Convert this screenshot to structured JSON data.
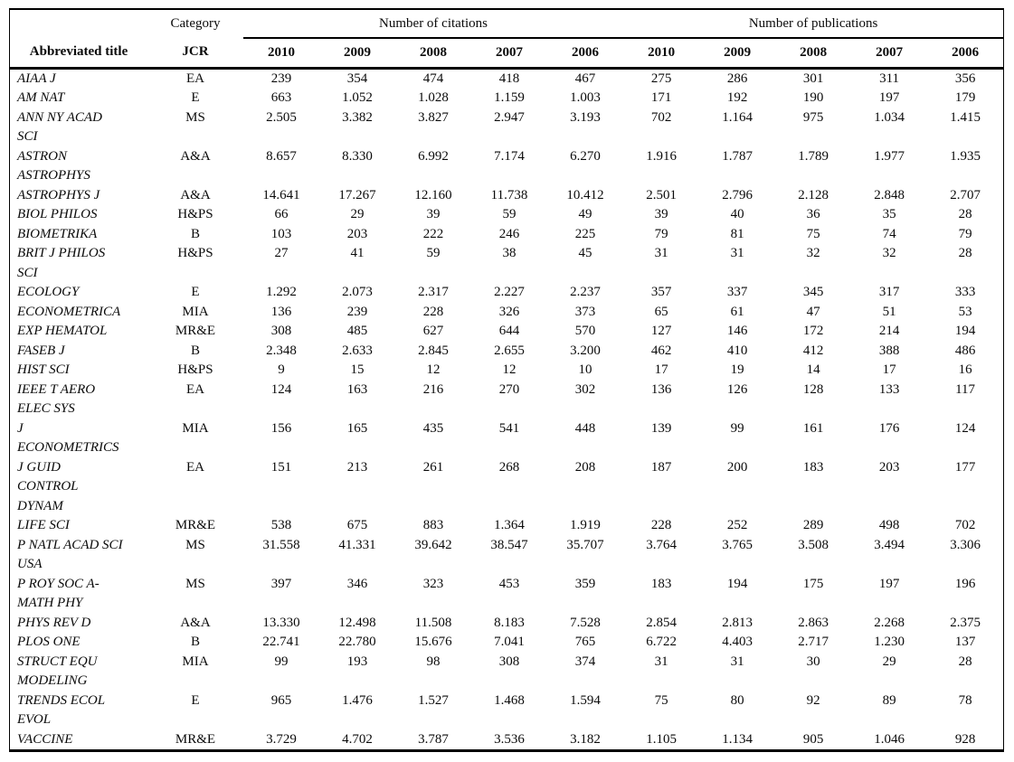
{
  "table": {
    "header": {
      "title_label": "Abbreviated title",
      "category_label": "Category",
      "jcr_label": "JCR",
      "citations_group_label": "Number of citations",
      "publications_group_label": "Number of publications",
      "years": [
        "2010",
        "2009",
        "2008",
        "2007",
        "2006"
      ]
    },
    "rows": [
      {
        "title": "AIAA J",
        "jcr": "EA",
        "citations": [
          "239",
          "354",
          "474",
          "418",
          "467"
        ],
        "publications": [
          "275",
          "286",
          "301",
          "311",
          "356"
        ]
      },
      {
        "title": "AM NAT",
        "jcr": "E",
        "citations": [
          "663",
          "1.052",
          "1.028",
          "1.159",
          "1.003"
        ],
        "publications": [
          "171",
          "192",
          "190",
          "197",
          "179"
        ]
      },
      {
        "title": "ANN NY ACAD\nSCI",
        "jcr": "MS",
        "citations": [
          "2.505",
          "3.382",
          "3.827",
          "2.947",
          "3.193"
        ],
        "publications": [
          "702",
          "1.164",
          "975",
          "1.034",
          "1.415"
        ]
      },
      {
        "title": "ASTRON\nASTROPHYS",
        "jcr": "A&A",
        "citations": [
          "8.657",
          "8.330",
          "6.992",
          "7.174",
          "6.270"
        ],
        "publications": [
          "1.916",
          "1.787",
          "1.789",
          "1.977",
          "1.935"
        ]
      },
      {
        "title": "ASTROPHYS J",
        "jcr": "A&A",
        "citations": [
          "14.641",
          "17.267",
          "12.160",
          "11.738",
          "10.412"
        ],
        "publications": [
          "2.501",
          "2.796",
          "2.128",
          "2.848",
          "2.707"
        ]
      },
      {
        "title": "BIOL PHILOS",
        "jcr": "H&PS",
        "citations": [
          "66",
          "29",
          "39",
          "59",
          "49"
        ],
        "publications": [
          "39",
          "40",
          "36",
          "35",
          "28"
        ]
      },
      {
        "title": "BIOMETRIKA",
        "jcr": "B",
        "citations": [
          "103",
          "203",
          "222",
          "246",
          "225"
        ],
        "publications": [
          "79",
          "81",
          "75",
          "74",
          "79"
        ]
      },
      {
        "title": "BRIT J PHILOS\nSCI",
        "jcr": "H&PS",
        "citations": [
          "27",
          "41",
          "59",
          "38",
          "45"
        ],
        "publications": [
          "31",
          "31",
          "32",
          "32",
          "28"
        ]
      },
      {
        "title": "ECOLOGY",
        "jcr": "E",
        "citations": [
          "1.292",
          "2.073",
          "2.317",
          "2.227",
          "2.237"
        ],
        "publications": [
          "357",
          "337",
          "345",
          "317",
          "333"
        ]
      },
      {
        "title": "ECONOMETRICA",
        "jcr": "MIA",
        "citations": [
          "136",
          "239",
          "228",
          "326",
          "373"
        ],
        "publications": [
          "65",
          "61",
          "47",
          "51",
          "53"
        ]
      },
      {
        "title": "EXP HEMATOL",
        "jcr": "MR&E",
        "citations": [
          "308",
          "485",
          "627",
          "644",
          "570"
        ],
        "publications": [
          "127",
          "146",
          "172",
          "214",
          "194"
        ]
      },
      {
        "title": "FASEB J",
        "jcr": "B",
        "citations": [
          "2.348",
          "2.633",
          "2.845",
          "2.655",
          "3.200"
        ],
        "publications": [
          "462",
          "410",
          "412",
          "388",
          "486"
        ]
      },
      {
        "title": "HIST SCI",
        "jcr": "H&PS",
        "citations": [
          "9",
          "15",
          "12",
          "12",
          "10"
        ],
        "publications": [
          "17",
          "19",
          "14",
          "17",
          "16"
        ]
      },
      {
        "title": "IEEE T AERO\nELEC SYS",
        "jcr": "EA",
        "citations": [
          "124",
          "163",
          "216",
          "270",
          "302"
        ],
        "publications": [
          "136",
          "126",
          "128",
          "133",
          "117"
        ]
      },
      {
        "title": "J\nECONOMETRICS",
        "jcr": "MIA",
        "citations": [
          "156",
          "165",
          "435",
          "541",
          "448"
        ],
        "publications": [
          "139",
          "99",
          "161",
          "176",
          "124"
        ]
      },
      {
        "title": "J GUID\nCONTROL\nDYNAM",
        "jcr": "EA",
        "citations": [
          "151",
          "213",
          "261",
          "268",
          "208"
        ],
        "publications": [
          "187",
          "200",
          "183",
          "203",
          "177"
        ]
      },
      {
        "title": "LIFE SCI",
        "jcr": "MR&E",
        "citations": [
          "538",
          "675",
          "883",
          "1.364",
          "1.919"
        ],
        "publications": [
          "228",
          "252",
          "289",
          "498",
          "702"
        ]
      },
      {
        "title": "P NATL ACAD SCI\nUSA",
        "jcr": "MS",
        "citations": [
          "31.558",
          "41.331",
          "39.642",
          "38.547",
          "35.707"
        ],
        "publications": [
          "3.764",
          "3.765",
          "3.508",
          "3.494",
          "3.306"
        ]
      },
      {
        "title": "P ROY SOC A-\nMATH PHY",
        "jcr": "MS",
        "citations": [
          "397",
          "346",
          "323",
          "453",
          "359"
        ],
        "publications": [
          "183",
          "194",
          "175",
          "197",
          "196"
        ]
      },
      {
        "title": "PHYS REV D",
        "jcr": "A&A",
        "citations": [
          "13.330",
          "12.498",
          "11.508",
          "8.183",
          "7.528"
        ],
        "publications": [
          "2.854",
          "2.813",
          "2.863",
          "2.268",
          "2.375"
        ]
      },
      {
        "title": "PLOS ONE",
        "jcr": "B",
        "citations": [
          "22.741",
          "22.780",
          "15.676",
          "7.041",
          "765"
        ],
        "publications": [
          "6.722",
          "4.403",
          "2.717",
          "1.230",
          "137"
        ]
      },
      {
        "title": "STRUCT EQU\nMODELING",
        "jcr": "MIA",
        "citations": [
          "99",
          "193",
          "98",
          "308",
          "374"
        ],
        "publications": [
          "31",
          "31",
          "30",
          "29",
          "28"
        ]
      },
      {
        "title": "TRENDS ECOL\nEVOL",
        "jcr": "E",
        "citations": [
          "965",
          "1.476",
          "1.527",
          "1.468",
          "1.594"
        ],
        "publications": [
          "75",
          "80",
          "92",
          "89",
          "78"
        ]
      },
      {
        "title": "VACCINE",
        "jcr": "MR&E",
        "citations": [
          "3.729",
          "4.702",
          "3.787",
          "3.536",
          "3.182"
        ],
        "publications": [
          "1.105",
          "1.134",
          "905",
          "1.046",
          "928"
        ]
      }
    ]
  }
}
